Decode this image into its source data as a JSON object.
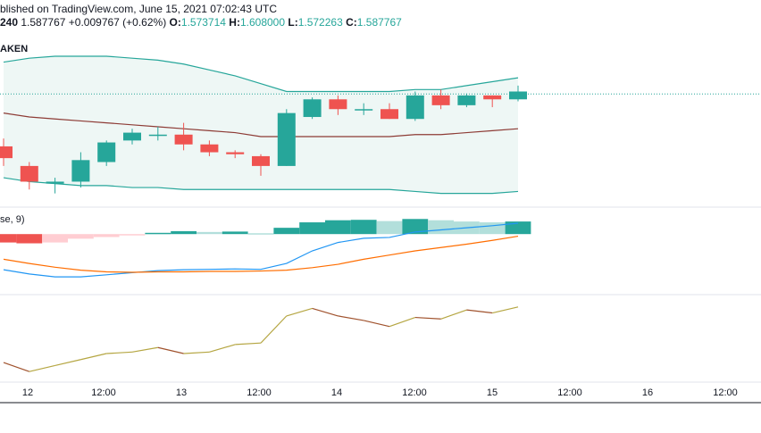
{
  "header": {
    "published": "blished on TradingView.com, June 15, 2021 07:02:43 UTC",
    "interval": "240",
    "last": "1.587767",
    "change": "+0.009767 (+0.62%)",
    "o_label": "O:",
    "o": "1.573714",
    "h_label": "H:",
    "h": "1.608000",
    "l_label": "L:",
    "l": "1.572263",
    "c_label": "C:",
    "c": "1.587767"
  },
  "symbol_label": "AKEN",
  "macd_label": "se, 9)",
  "colors": {
    "up": "#26a69a",
    "down": "#ef5350",
    "bb_upper": "#26a69a",
    "bb_basis": "#8d3b35",
    "bb_fill": "#eef7f5",
    "macd_line": "#2196f3",
    "signal_line": "#ff6d00",
    "hist_pos_strong": "#26a69a",
    "hist_pos_weak": "#b2dfdb",
    "hist_neg_strong": "#ef5350",
    "hist_neg_weak": "#ffcdd2",
    "rsi_up": "#b5a642",
    "rsi_down": "#a0522d"
  },
  "chart_data": {
    "type": "candlestick",
    "x_tick_labels": [
      "12",
      "12:00",
      "13",
      "12:00",
      "14",
      "12:00",
      "15",
      "12:00",
      "16",
      "12:00"
    ],
    "last_price_line": 1.587767,
    "candles": [
      {
        "o": 1.561,
        "h": 1.565,
        "l": 1.551,
        "c": 1.555
      },
      {
        "o": 1.551,
        "h": 1.553,
        "l": 1.539,
        "c": 1.543
      },
      {
        "o": 1.542,
        "h": 1.545,
        "l": 1.537,
        "c": 1.543
      },
      {
        "o": 1.543,
        "h": 1.558,
        "l": 1.54,
        "c": 1.554
      },
      {
        "o": 1.553,
        "h": 1.564,
        "l": 1.551,
        "c": 1.563
      },
      {
        "o": 1.564,
        "h": 1.57,
        "l": 1.562,
        "c": 1.568
      },
      {
        "o": 1.567,
        "h": 1.571,
        "l": 1.564,
        "c": 1.567
      },
      {
        "o": 1.567,
        "h": 1.573,
        "l": 1.559,
        "c": 1.562
      },
      {
        "o": 1.562,
        "h": 1.564,
        "l": 1.556,
        "c": 1.558
      },
      {
        "o": 1.558,
        "h": 1.559,
        "l": 1.555,
        "c": 1.557
      },
      {
        "o": 1.556,
        "h": 1.557,
        "l": 1.546,
        "c": 1.551
      },
      {
        "o": 1.551,
        "h": 1.58,
        "l": 1.551,
        "c": 1.578
      },
      {
        "o": 1.576,
        "h": 1.586,
        "l": 1.575,
        "c": 1.585
      },
      {
        "o": 1.585,
        "h": 1.587,
        "l": 1.577,
        "c": 1.58
      },
      {
        "o": 1.58,
        "h": 1.583,
        "l": 1.577,
        "c": 1.58
      },
      {
        "o": 1.58,
        "h": 1.583,
        "l": 1.575,
        "c": 1.575
      },
      {
        "o": 1.575,
        "h": 1.589,
        "l": 1.574,
        "c": 1.587
      },
      {
        "o": 1.587,
        "h": 1.59,
        "l": 1.58,
        "c": 1.582
      },
      {
        "o": 1.582,
        "h": 1.588,
        "l": 1.581,
        "c": 1.587
      },
      {
        "o": 1.587,
        "h": 1.587,
        "l": 1.581,
        "c": 1.585
      },
      {
        "o": 1.585,
        "h": 1.592,
        "l": 1.584,
        "c": 1.589
      }
    ],
    "bb_upper": [
      1.604,
      1.606,
      1.607,
      1.607,
      1.607,
      1.606,
      1.605,
      1.603,
      1.6,
      1.597,
      1.593,
      1.589,
      1.589,
      1.589,
      1.589,
      1.589,
      1.59,
      1.59,
      1.592,
      1.594,
      1.596
    ],
    "bb_basis": [
      1.578,
      1.576,
      1.575,
      1.574,
      1.573,
      1.572,
      1.571,
      1.57,
      1.569,
      1.568,
      1.566,
      1.566,
      1.566,
      1.566,
      1.566,
      1.566,
      1.567,
      1.567,
      1.568,
      1.569,
      1.57
    ],
    "bb_lower": [
      1.545,
      1.543,
      1.542,
      1.541,
      1.541,
      1.54,
      1.54,
      1.539,
      1.539,
      1.539,
      1.539,
      1.539,
      1.539,
      1.539,
      1.539,
      1.539,
      1.538,
      1.537,
      1.537,
      1.537,
      1.538
    ],
    "macd_hist": [
      -0.002,
      -0.0022,
      -0.002,
      -0.0011,
      -0.0007,
      -0.0003,
      0.0003,
      0.0007,
      0.0005,
      0.0006,
      0.0002,
      0.0015,
      0.0028,
      0.0033,
      0.0034,
      0.0031,
      0.0036,
      0.0033,
      0.003,
      0.0028,
      0.003
    ],
    "macd_line": [
      -0.0085,
      -0.0095,
      -0.0102,
      -0.0102,
      -0.0097,
      -0.0092,
      -0.0087,
      -0.0085,
      -0.0084,
      -0.0083,
      -0.0084,
      -0.007,
      -0.004,
      -0.002,
      -0.001,
      -0.0008,
      0.0005,
      0.001,
      0.0015,
      0.002,
      0.0026
    ],
    "signal_line": [
      -0.006,
      -0.007,
      -0.0079,
      -0.0086,
      -0.009,
      -0.0091,
      -0.009,
      -0.009,
      -0.0089,
      -0.0089,
      -0.0088,
      -0.0086,
      -0.008,
      -0.0072,
      -0.006,
      -0.005,
      -0.004,
      -0.0032,
      -0.0024,
      -0.0015,
      -0.0005
    ],
    "osc": [
      38,
      32,
      36,
      40,
      44,
      45,
      48,
      44,
      45,
      50,
      51,
      69,
      74,
      69,
      66,
      62,
      68,
      67,
      73,
      71,
      75
    ]
  }
}
